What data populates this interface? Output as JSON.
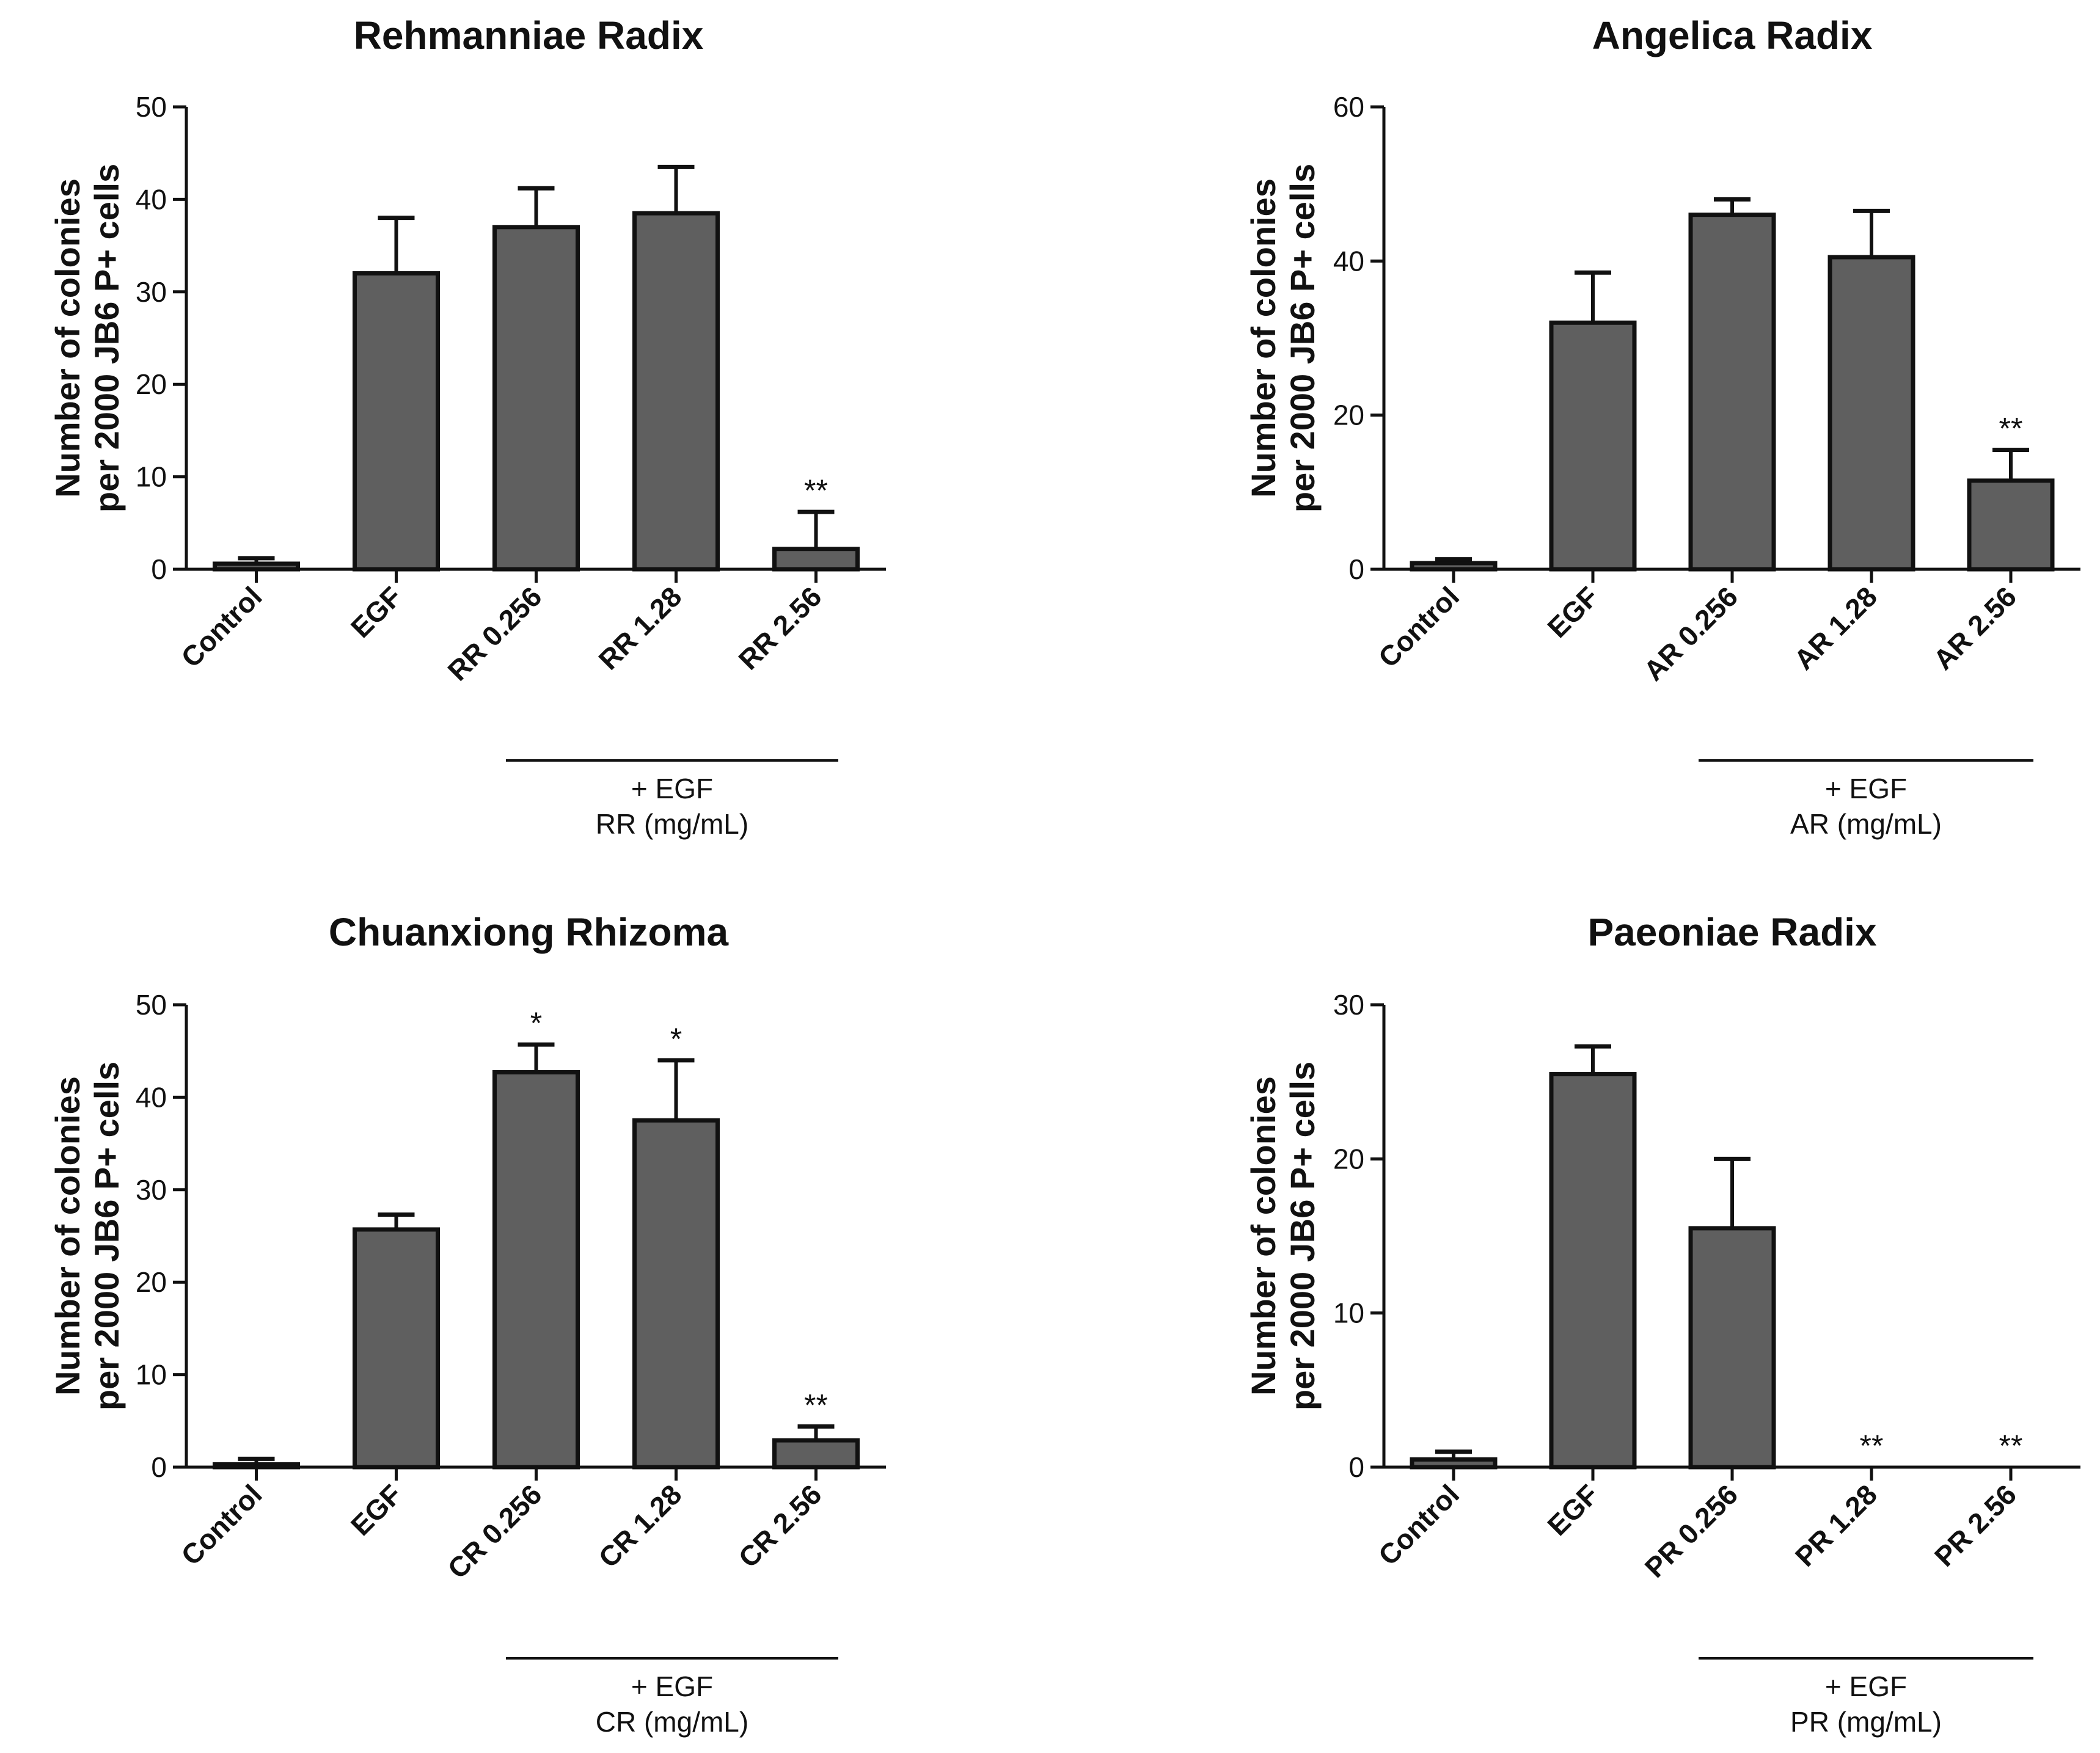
{
  "chart_data": [
    {
      "type": "bar",
      "title": "Rehmanniae Radix",
      "ylabel": [
        "Number of colonies",
        "per 2000 JB6 P+ cells"
      ],
      "categories": [
        "Control",
        "EGF",
        "RR 0.256",
        "RR 1.28",
        "RR 2.56"
      ],
      "values": [
        0.6,
        32,
        37,
        38.5,
        2.2
      ],
      "errors": [
        0.6,
        6,
        4.2,
        5,
        4
      ],
      "significance": [
        "",
        "",
        "",
        "",
        "**"
      ],
      "ylim": [
        0,
        50
      ],
      "yticks": [
        0,
        10,
        20,
        30,
        40,
        50
      ],
      "group_label": [
        "+ EGF",
        "RR (mg/mL)"
      ],
      "group_span": [
        2,
        4
      ]
    },
    {
      "type": "bar",
      "title": "Angelica Radix",
      "ylabel": [
        "Number of colonies",
        "per 2000 JB6 P+ cells"
      ],
      "categories": [
        "Control",
        "EGF",
        "AR 0.256",
        "AR 1.28",
        "AR 2.56"
      ],
      "values": [
        0.8,
        32,
        46,
        40.5,
        11.5
      ],
      "errors": [
        0.5,
        6.5,
        2,
        6,
        4
      ],
      "significance": [
        "",
        "",
        "",
        "",
        "**"
      ],
      "ylim": [
        0,
        60
      ],
      "yticks": [
        0,
        20,
        40,
        60
      ],
      "group_label": [
        "+ EGF",
        "AR (mg/mL)"
      ],
      "group_span": [
        2,
        4
      ]
    },
    {
      "type": "bar",
      "title": "Chuanxiong Rhizoma",
      "ylabel": [
        "Number of colonies",
        "per 2000 JB6 P+ cells"
      ],
      "categories": [
        "Control",
        "EGF",
        "CR 0.256",
        "CR 1.28",
        "CR 2.56"
      ],
      "values": [
        0.3,
        25.7,
        42.7,
        37.5,
        2.9
      ],
      "errors": [
        0.6,
        1.6,
        3,
        6.5,
        1.5
      ],
      "significance": [
        "",
        "",
        "*",
        "*",
        "**"
      ],
      "ylim": [
        0,
        50
      ],
      "yticks": [
        0,
        10,
        20,
        30,
        40,
        50
      ],
      "group_label": [
        "+ EGF",
        "CR (mg/mL)"
      ],
      "group_span": [
        2,
        4
      ]
    },
    {
      "type": "bar",
      "title": "Paeoniae Radix",
      "ylabel": [
        "Number of colonies",
        "per 2000 JB6 P+ cells"
      ],
      "categories": [
        "Control",
        "EGF",
        "PR 0.256",
        "PR 1.28",
        "PR 2.56"
      ],
      "values": [
        0.5,
        25.5,
        15.5,
        0,
        0
      ],
      "errors": [
        0.5,
        1.8,
        4.5,
        0,
        0
      ],
      "significance": [
        "",
        "",
        "",
        "**",
        "**"
      ],
      "ylim": [
        0,
        30
      ],
      "yticks": [
        0,
        10,
        20,
        30
      ],
      "group_label": [
        "+ EGF",
        "PR (mg/mL)"
      ],
      "group_span": [
        2,
        4
      ]
    }
  ]
}
